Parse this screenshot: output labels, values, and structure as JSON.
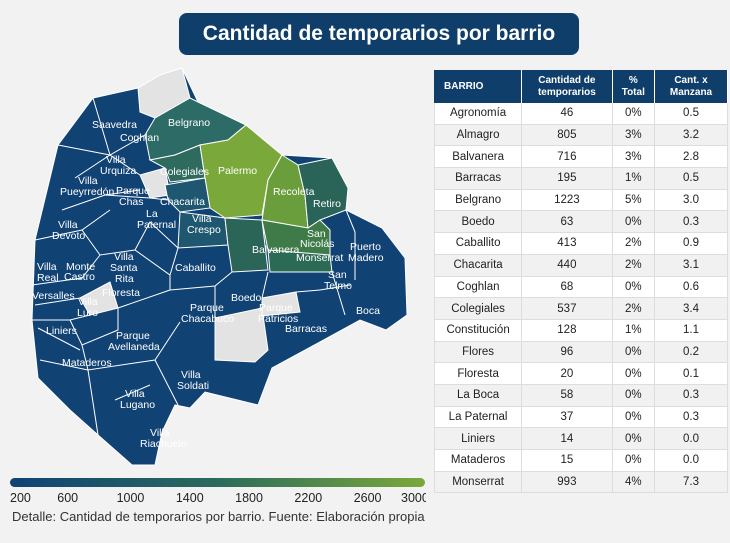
{
  "title": "Cantidad de temporarios por barrio",
  "footer": "Detalle: Cantidad de temporarios por barrio. Fuente: Elaboración propia",
  "colors": {
    "title_bg": "#0f3e6b",
    "scale_low": "#114274",
    "scale_high": "#7ba83a",
    "no_data": "#e3e3e3"
  },
  "map_labels": [
    "Saavedra",
    "Coghlan",
    "Belgrano",
    "Villa Urquiza",
    "Colegiales",
    "Palermo",
    "Recoleta",
    "Retiro",
    "Villa Pueyrredón",
    "Parque Chas",
    "Chacarita",
    "La Paternal",
    "Villa Crespo",
    "San Nicolás",
    "Puerto Madero",
    "Villa Devoto",
    "Villa Santa Rita",
    "Balvanera",
    "Monserrat",
    "San Telmo",
    "Villa Real",
    "Monte Castro",
    "Floresta",
    "Caballito",
    "Versalles",
    "Villa Luro",
    "Boedo",
    "Parque Chacabuco",
    "Parque Patricios",
    "Boca",
    "Liniers",
    "Parque Avellaneda",
    "Barracas",
    "Mataderos",
    "Villa Soldati",
    "Villa Lugano",
    "Villa Riachuelo"
  ],
  "table": {
    "headers": [
      "BARRIO",
      "Cantidad de temporarios",
      "% Total",
      "Cant. x Manzana"
    ]
  },
  "chart_data": {
    "type": "table",
    "columns": [
      "BARRIO",
      "Cantidad de temporarios",
      "% Total",
      "Cant. x Manzana"
    ],
    "rows": [
      [
        "Agronomía",
        "46",
        "0%",
        "0.5"
      ],
      [
        "Almagro",
        "805",
        "3%",
        "3.2"
      ],
      [
        "Balvanera",
        "716",
        "3%",
        "2.8"
      ],
      [
        "Barracas",
        "195",
        "1%",
        "0.5"
      ],
      [
        "Belgrano",
        "1223",
        "5%",
        "3.0"
      ],
      [
        "Boedo",
        "63",
        "0%",
        "0.3"
      ],
      [
        "Caballito",
        "413",
        "2%",
        "0.9"
      ],
      [
        "Chacarita",
        "440",
        "2%",
        "3.1"
      ],
      [
        "Coghlan",
        "68",
        "0%",
        "0.6"
      ],
      [
        "Colegiales",
        "537",
        "2%",
        "3.4"
      ],
      [
        "Constitución",
        "128",
        "1%",
        "1.1"
      ],
      [
        "Flores",
        "96",
        "0%",
        "0.2"
      ],
      [
        "Floresta",
        "20",
        "0%",
        "0.1"
      ],
      [
        "La Boca",
        "58",
        "0%",
        "0.3"
      ],
      [
        "La Paternal",
        "37",
        "0%",
        "0.3"
      ],
      [
        "Liniers",
        "14",
        "0%",
        "0.0"
      ],
      [
        "Mataderos",
        "15",
        "0%",
        "0.0"
      ],
      [
        "Monserrat",
        "993",
        "4%",
        "7.3"
      ]
    ],
    "legend": {
      "ticks": [
        "200",
        "600",
        "1000",
        "1400",
        "1800",
        "2200",
        "2600",
        "3000"
      ],
      "min": 200,
      "max": 3000
    }
  }
}
